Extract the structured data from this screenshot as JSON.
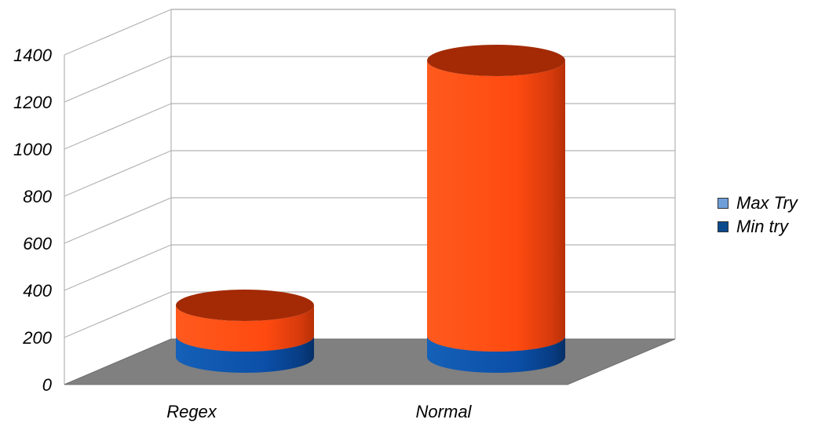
{
  "chart_data": {
    "type": "bar",
    "style": "3d-cylinder-stacked",
    "categories": [
      "Regex",
      "Normal"
    ],
    "series": [
      {
        "name": "Min try",
        "values": [
          90,
          90
        ],
        "color": "#0b4fa8"
      },
      {
        "name": "Max Try",
        "values": [
          130,
          1170
        ],
        "color": "#ff4a12"
      }
    ],
    "ylim": [
      0,
      1400
    ],
    "yticks": [
      "0",
      "200",
      "400",
      "600",
      "800",
      "1000",
      "1200",
      "1400"
    ],
    "grid": true,
    "legend_position": "right",
    "legend": [
      {
        "name": "Max Try",
        "color": "#6f9fd8"
      },
      {
        "name": "Min try",
        "color": "#0b4a8c"
      }
    ],
    "title": "",
    "xlabel": "",
    "ylabel": ""
  }
}
